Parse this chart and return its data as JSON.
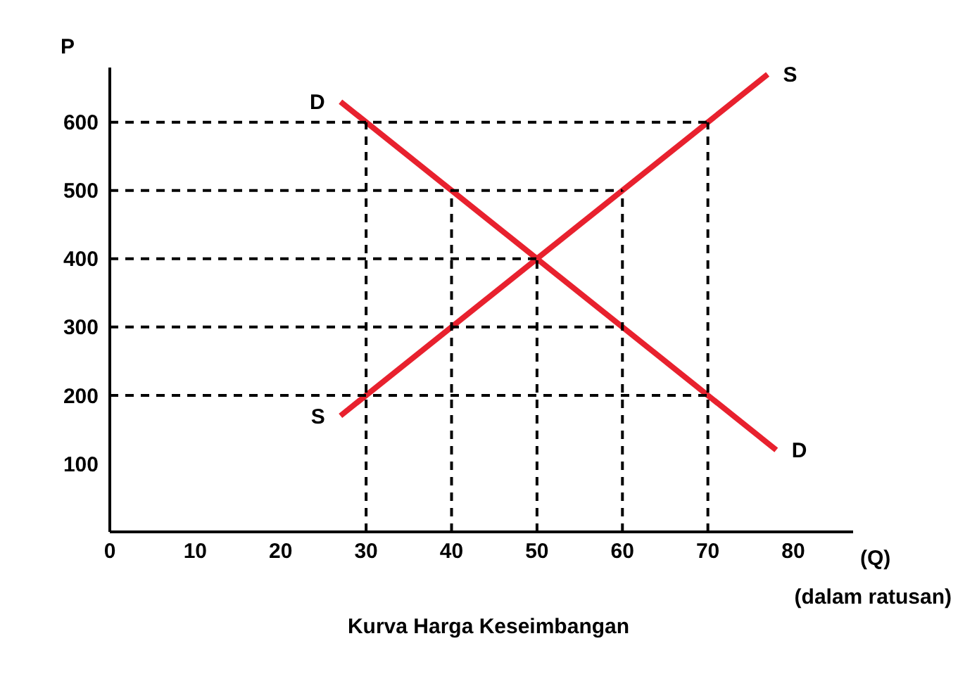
{
  "chart_data": {
    "type": "line",
    "title": "Kurva Harga Keseimbangan",
    "xlabel": "(Q)",
    "ylabel": "P",
    "xlim": [
      0,
      87
    ],
    "xticks": [
      0,
      10,
      20,
      30,
      40,
      50,
      60,
      70,
      80
    ],
    "ylim": [
      0,
      680
    ],
    "yticks": [
      100,
      200,
      300,
      400,
      500,
      600
    ],
    "marker": "none",
    "series": [
      {
        "color": "#e8212e",
        "x": [
          27,
          78
        ],
        "values": [
          630,
          120
        ]
      },
      {
        "color": "#e8212e",
        "x": [
          27,
          77
        ],
        "values": [
          170,
          670
        ]
      },
      {
        "color": "#000000",
        "line_style": "dashed",
        "x": [
          0,
          70
        ],
        "values": [
          600,
          600
        ]
      },
      {
        "color": "#000000",
        "line_style": "dashed",
        "x": [
          0,
          60
        ],
        "values": [
          500,
          500
        ]
      },
      {
        "color": "#000000",
        "line_style": "dashed",
        "x": [
          0,
          50
        ],
        "values": [
          400,
          400
        ]
      },
      {
        "color": "#000000",
        "line_style": "dashed",
        "x": [
          0,
          60
        ],
        "values": [
          300,
          300
        ]
      },
      {
        "color": "#000000",
        "line_style": "dashed",
        "x": [
          0,
          70
        ],
        "values": [
          200,
          200
        ]
      },
      {
        "color": "#000000",
        "line_style": "dashed",
        "x": [
          30,
          30
        ],
        "values": [
          0,
          600
        ]
      },
      {
        "color": "#000000",
        "line_style": "dashed",
        "x": [
          40,
          40
        ],
        "values": [
          0,
          500
        ]
      },
      {
        "color": "#000000",
        "line_style": "dashed",
        "x": [
          50,
          50
        ],
        "values": [
          0,
          400
        ]
      },
      {
        "color": "#000000",
        "line_style": "dashed",
        "x": [
          60,
          60
        ],
        "values": [
          0,
          500
        ]
      },
      {
        "color": "#000000",
        "line_style": "dashed",
        "x": [
          70,
          70
        ],
        "values": [
          0,
          600
        ]
      }
    ],
    "annotations": [
      {
        "text": "D",
        "x": 27,
        "y": 630
      },
      {
        "text": "D",
        "x": 78,
        "y": 120
      },
      {
        "text": "S",
        "x": 77,
        "y": 670
      },
      {
        "text": "S",
        "x": 27,
        "y": 170
      },
      "(dalam ratusan)"
    ]
  }
}
